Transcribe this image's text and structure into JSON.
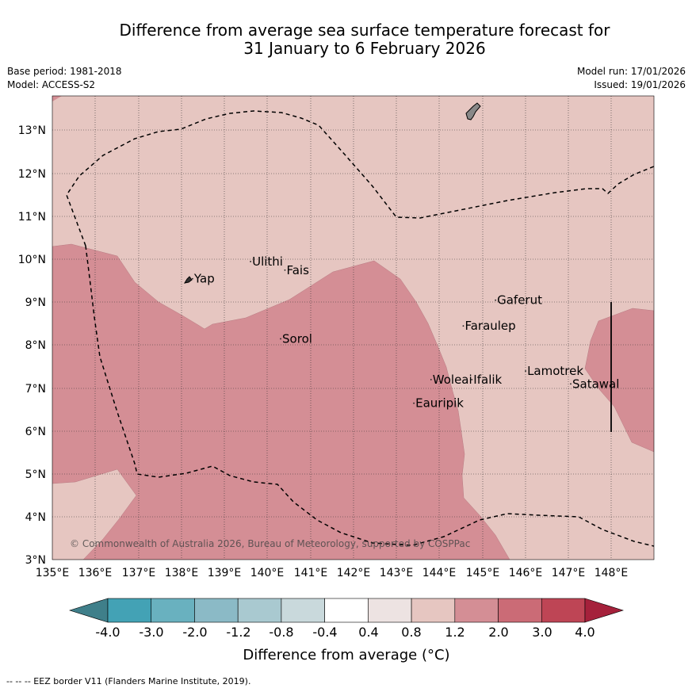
{
  "title": {
    "line1": "Difference from average sea surface temperature forecast for",
    "line2": "31 January to 6 February 2026"
  },
  "meta": {
    "base_period": "Base period: 1981-2018",
    "model": "Model: ACCESS-S2",
    "model_run": "Model run: 17/01/2026",
    "issued": "Issued: 19/01/2026"
  },
  "map": {
    "lon_range": [
      135,
      149
    ],
    "lat_range": [
      3,
      13.8
    ],
    "lon_ticks": [
      "135°E",
      "136°E",
      "137°E",
      "138°E",
      "139°E",
      "140°E",
      "141°E",
      "142°E",
      "143°E",
      "144°E",
      "145°E",
      "146°E",
      "147°E",
      "148°E"
    ],
    "lat_ticks": [
      "3°N",
      "4°N",
      "5°N",
      "6°N",
      "7°N",
      "8°N",
      "9°N",
      "10°N",
      "11°N",
      "12°N",
      "13°N"
    ],
    "places": [
      {
        "name": "Yap",
        "lon": 138.3,
        "lat": 9.45
      },
      {
        "name": "Ulithi",
        "lon": 139.65,
        "lat": 9.85
      },
      {
        "name": "Fais",
        "lon": 140.45,
        "lat": 9.65
      },
      {
        "name": "Sorol",
        "lon": 140.35,
        "lat": 8.05
      },
      {
        "name": "Gaferut",
        "lon": 145.35,
        "lat": 8.95
      },
      {
        "name": "Faraulep",
        "lon": 144.6,
        "lat": 8.35
      },
      {
        "name": "Woleai",
        "lon": 143.85,
        "lat": 7.1
      },
      {
        "name": "Ifalik",
        "lon": 144.8,
        "lat": 7.1
      },
      {
        "name": "Lamotrek",
        "lon": 146.05,
        "lat": 7.3
      },
      {
        "name": "Satawal",
        "lon": 147.1,
        "lat": 7.0
      },
      {
        "name": "Eauripik",
        "lon": 143.45,
        "lat": 6.55
      }
    ],
    "copyright": "© Commonwealth of Australia 2026, Bureau of Meteorology, supported by COSPPac"
  },
  "colorbar": {
    "labels": [
      "-4.0",
      "-3.0",
      "-2.0",
      "-1.2",
      "-0.8",
      "-0.4",
      "0.4",
      "0.8",
      "1.2",
      "2.0",
      "3.0",
      "4.0"
    ],
    "colors": [
      "#43a2b5",
      "#69b1bf",
      "#8bbac6",
      "#a9c9d0",
      "#c9d9dc",
      "#ffffff",
      "#ede3e2",
      "#e6c6c1",
      "#d48e95",
      "#cb6b76",
      "#be4555"
    ],
    "low_color": "#3f7f8a",
    "high_color": "#a5213b",
    "title": "Difference from average (°C)"
  },
  "footer": "--  --  -- EEZ border V11 (Flanders Marine Institute, 2019)."
}
